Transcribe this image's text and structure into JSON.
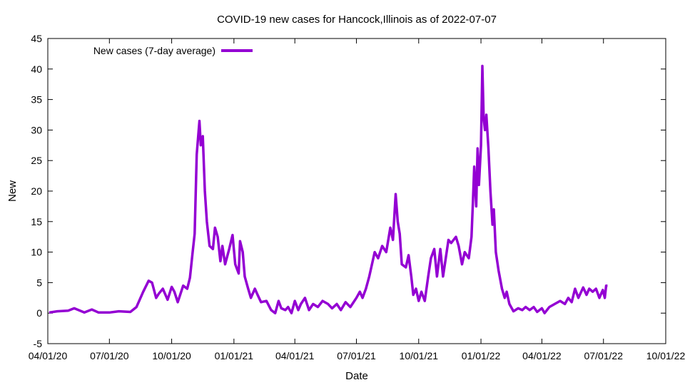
{
  "chart_data": {
    "type": "line",
    "title": "COVID-19 new cases for Hancock,Illinois as of 2022-07-07",
    "xlabel": "Date",
    "ylabel": "New",
    "xlim": [
      "2020-04-01",
      "2022-10-01"
    ],
    "ylim": [
      -5,
      45
    ],
    "grid": false,
    "legend": "top-left",
    "x_ticks": [
      "04/01/20",
      "07/01/20",
      "10/01/20",
      "01/01/21",
      "04/01/21",
      "07/01/21",
      "10/01/21",
      "01/01/22",
      "04/01/22",
      "07/01/22",
      "10/01/22"
    ],
    "y_ticks": [
      -5,
      0,
      5,
      10,
      15,
      20,
      25,
      30,
      35,
      40,
      45
    ],
    "colors": {
      "series": "#9400d3",
      "axes": "#000000",
      "background": "#ffffff"
    },
    "series": [
      {
        "name": "New cases (7-day average)",
        "color": "#9400d3",
        "points": [
          [
            "2020-04-03",
            0.1
          ],
          [
            "2020-04-15",
            0.3
          ],
          [
            "2020-05-01",
            0.4
          ],
          [
            "2020-05-10",
            0.8
          ],
          [
            "2020-05-25",
            0.1
          ],
          [
            "2020-06-05",
            0.6
          ],
          [
            "2020-06-15",
            0.1
          ],
          [
            "2020-07-01",
            0.1
          ],
          [
            "2020-07-15",
            0.3
          ],
          [
            "2020-08-01",
            0.2
          ],
          [
            "2020-08-10",
            1.0
          ],
          [
            "2020-08-20",
            3.5
          ],
          [
            "2020-08-28",
            5.3
          ],
          [
            "2020-09-02",
            5.0
          ],
          [
            "2020-09-08",
            2.5
          ],
          [
            "2020-09-12",
            3.2
          ],
          [
            "2020-09-18",
            4.0
          ],
          [
            "2020-09-25",
            2.2
          ],
          [
            "2020-10-01",
            4.3
          ],
          [
            "2020-10-05",
            3.5
          ],
          [
            "2020-10-10",
            1.8
          ],
          [
            "2020-10-18",
            4.5
          ],
          [
            "2020-10-24",
            4.0
          ],
          [
            "2020-10-28",
            5.8
          ],
          [
            "2020-11-01",
            10.0
          ],
          [
            "2020-11-04",
            13.0
          ],
          [
            "2020-11-07",
            26.0
          ],
          [
            "2020-11-11",
            31.5
          ],
          [
            "2020-11-13",
            27.5
          ],
          [
            "2020-11-16",
            29.0
          ],
          [
            "2020-11-19",
            20.0
          ],
          [
            "2020-11-22",
            15.0
          ],
          [
            "2020-11-26",
            11.0
          ],
          [
            "2020-12-01",
            10.5
          ],
          [
            "2020-12-04",
            14.0
          ],
          [
            "2020-12-08",
            12.5
          ],
          [
            "2020-12-12",
            8.5
          ],
          [
            "2020-12-15",
            11.0
          ],
          [
            "2020-12-19",
            8.0
          ],
          [
            "2020-12-25",
            10.5
          ],
          [
            "2020-12-30",
            12.8
          ],
          [
            "2021-01-03",
            8.0
          ],
          [
            "2021-01-08",
            6.5
          ],
          [
            "2021-01-10",
            11.8
          ],
          [
            "2021-01-14",
            10.0
          ],
          [
            "2021-01-17",
            6.0
          ],
          [
            "2021-01-22",
            4.0
          ],
          [
            "2021-01-26",
            2.5
          ],
          [
            "2021-02-01",
            4.0
          ],
          [
            "2021-02-05",
            3.0
          ],
          [
            "2021-02-10",
            1.8
          ],
          [
            "2021-02-18",
            2.0
          ],
          [
            "2021-02-25",
            0.5
          ],
          [
            "2021-03-03",
            0.0
          ],
          [
            "2021-03-08",
            2.0
          ],
          [
            "2021-03-12",
            0.8
          ],
          [
            "2021-03-18",
            0.5
          ],
          [
            "2021-03-22",
            1.0
          ],
          [
            "2021-03-27",
            0.0
          ],
          [
            "2021-04-01",
            2.0
          ],
          [
            "2021-04-06",
            0.5
          ],
          [
            "2021-04-10",
            1.5
          ],
          [
            "2021-04-16",
            2.5
          ],
          [
            "2021-04-22",
            0.5
          ],
          [
            "2021-04-28",
            1.5
          ],
          [
            "2021-05-05",
            1.0
          ],
          [
            "2021-05-12",
            2.0
          ],
          [
            "2021-05-20",
            1.5
          ],
          [
            "2021-05-26",
            0.8
          ],
          [
            "2021-06-02",
            1.5
          ],
          [
            "2021-06-08",
            0.5
          ],
          [
            "2021-06-15",
            1.8
          ],
          [
            "2021-06-22",
            1.0
          ],
          [
            "2021-07-01",
            2.5
          ],
          [
            "2021-07-06",
            3.5
          ],
          [
            "2021-07-10",
            2.5
          ],
          [
            "2021-07-15",
            4.0
          ],
          [
            "2021-07-20",
            6.0
          ],
          [
            "2021-07-24",
            8.0
          ],
          [
            "2021-07-28",
            10.0
          ],
          [
            "2021-08-02",
            9.0
          ],
          [
            "2021-08-08",
            11.0
          ],
          [
            "2021-08-14",
            10.0
          ],
          [
            "2021-08-20",
            14.0
          ],
          [
            "2021-08-24",
            12.0
          ],
          [
            "2021-08-28",
            19.5
          ],
          [
            "2021-08-31",
            15.0
          ],
          [
            "2021-09-03",
            13.0
          ],
          [
            "2021-09-06",
            8.0
          ],
          [
            "2021-09-12",
            7.5
          ],
          [
            "2021-09-16",
            9.5
          ],
          [
            "2021-09-20",
            6.0
          ],
          [
            "2021-09-23",
            3.0
          ],
          [
            "2021-09-27",
            4.0
          ],
          [
            "2021-10-01",
            2.0
          ],
          [
            "2021-10-05",
            3.5
          ],
          [
            "2021-10-10",
            2.0
          ],
          [
            "2021-10-15",
            6.0
          ],
          [
            "2021-10-19",
            9.0
          ],
          [
            "2021-10-24",
            10.5
          ],
          [
            "2021-10-28",
            6.0
          ],
          [
            "2021-11-02",
            10.5
          ],
          [
            "2021-11-06",
            6.0
          ],
          [
            "2021-11-10",
            9.0
          ],
          [
            "2021-11-14",
            12.0
          ],
          [
            "2021-11-18",
            11.5
          ],
          [
            "2021-11-25",
            12.5
          ],
          [
            "2021-11-29",
            11.0
          ],
          [
            "2021-12-04",
            8.0
          ],
          [
            "2021-12-08",
            10.0
          ],
          [
            "2021-12-14",
            9.0
          ],
          [
            "2021-12-18",
            12.5
          ],
          [
            "2021-12-20",
            18.0
          ],
          [
            "2021-12-22",
            24.0
          ],
          [
            "2021-12-25",
            17.5
          ],
          [
            "2021-12-27",
            27.0
          ],
          [
            "2021-12-29",
            21.0
          ],
          [
            "2022-01-01",
            27.5
          ],
          [
            "2022-01-03",
            40.5
          ],
          [
            "2022-01-05",
            32.0
          ],
          [
            "2022-01-07",
            30.0
          ],
          [
            "2022-01-09",
            32.5
          ],
          [
            "2022-01-12",
            27.0
          ],
          [
            "2022-01-15",
            20.0
          ],
          [
            "2022-01-18",
            14.5
          ],
          [
            "2022-01-20",
            17.0
          ],
          [
            "2022-01-23",
            10.0
          ],
          [
            "2022-01-27",
            7.0
          ],
          [
            "2022-02-01",
            4.0
          ],
          [
            "2022-02-05",
            2.5
          ],
          [
            "2022-02-08",
            3.5
          ],
          [
            "2022-02-12",
            1.5
          ],
          [
            "2022-02-18",
            0.3
          ],
          [
            "2022-02-25",
            0.8
          ],
          [
            "2022-03-03",
            0.5
          ],
          [
            "2022-03-08",
            1.0
          ],
          [
            "2022-03-14",
            0.5
          ],
          [
            "2022-03-20",
            1.0
          ],
          [
            "2022-03-25",
            0.2
          ],
          [
            "2022-04-01",
            0.8
          ],
          [
            "2022-04-05",
            0.0
          ],
          [
            "2022-04-12",
            1.0
          ],
          [
            "2022-04-20",
            1.5
          ],
          [
            "2022-04-28",
            2.0
          ],
          [
            "2022-05-05",
            1.5
          ],
          [
            "2022-05-10",
            2.5
          ],
          [
            "2022-05-15",
            1.8
          ],
          [
            "2022-05-20",
            4.0
          ],
          [
            "2022-05-25",
            2.5
          ],
          [
            "2022-06-01",
            4.2
          ],
          [
            "2022-06-06",
            3.0
          ],
          [
            "2022-06-10",
            4.0
          ],
          [
            "2022-06-15",
            3.5
          ],
          [
            "2022-06-20",
            4.0
          ],
          [
            "2022-06-25",
            2.5
          ],
          [
            "2022-06-30",
            3.8
          ],
          [
            "2022-07-03",
            2.5
          ],
          [
            "2022-07-05",
            4.5
          ],
          [
            "2022-07-07",
            4.5
          ]
        ]
      }
    ]
  }
}
